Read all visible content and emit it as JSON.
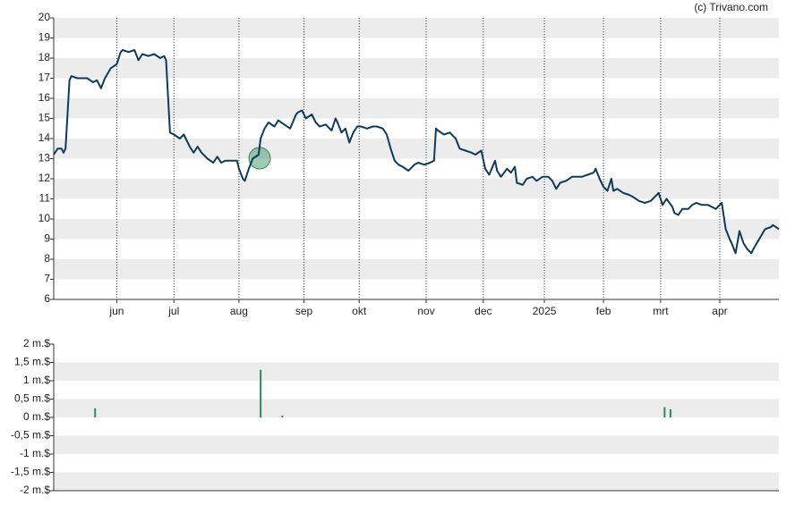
{
  "credit": "(c) Trivano.com",
  "chart_data": [
    {
      "type": "line",
      "x": [
        2,
        4,
        6,
        7,
        8,
        10,
        11,
        14,
        16,
        19,
        22,
        24,
        26,
        28,
        31,
        34,
        36,
        37,
        40,
        43,
        45,
        47,
        50,
        53,
        56,
        58,
        59,
        61,
        63,
        66,
        68,
        71,
        73,
        75,
        77,
        80,
        83,
        85,
        87,
        89,
        92,
        95,
        96,
        98,
        99,
        101,
        103,
        106,
        107,
        109,
        111,
        114,
        116,
        119,
        122,
        125,
        126,
        128,
        130,
        133,
        135,
        137,
        140,
        143,
        145,
        146,
        148,
        150,
        152,
        154,
        156,
        158,
        161,
        164,
        166,
        169,
        171,
        173,
        175,
        177,
        179,
        182,
        185,
        187,
        190,
        193,
        195,
        196,
        197,
        200,
        203,
        206,
        208,
        211,
        214,
        216,
        219,
        221,
        223,
        226,
        227,
        229,
        232,
        234,
        236,
        237,
        240,
        242,
        245,
        247,
        250,
        253,
        255,
        257,
        259,
        262,
        265,
        267,
        270,
        273,
        276,
        277,
        279,
        281,
        283,
        285,
        286,
        288,
        291,
        294,
        296,
        299,
        302,
        305,
        307,
        309,
        311,
        313,
        316,
        317,
        319,
        321,
        324,
        326,
        328,
        331,
        334,
        336,
        338,
        341,
        343,
        345,
        346,
        348,
        350,
        352,
        354,
        356,
        357,
        360,
        363,
        366,
        367,
        370
      ],
      "series": [
        {
          "color": "#0d3b5e",
          "values": [
            13.2,
            13.5,
            13.5,
            13.3,
            13.5,
            16.9,
            17.1,
            17.0,
            17.0,
            17.0,
            16.8,
            16.9,
            16.5,
            17.0,
            17.5,
            17.7,
            18.3,
            18.4,
            18.3,
            18.4,
            17.9,
            18.2,
            18.1,
            18.2,
            18.0,
            18.1,
            17.9,
            14.3,
            14.2,
            14.0,
            14.2,
            13.6,
            13.3,
            13.6,
            13.3,
            13.0,
            12.8,
            13.1,
            12.8,
            12.9,
            12.9,
            12.9,
            12.5,
            12.0,
            11.9,
            12.5,
            13.0,
            13.2,
            14.0,
            14.5,
            14.8,
            14.6,
            14.9,
            14.7,
            14.5,
            15.2,
            15.3,
            15.4,
            15.0,
            15.2,
            14.8,
            14.6,
            14.7,
            14.4,
            15.0,
            14.8,
            14.3,
            14.5,
            13.8,
            14.3,
            14.6,
            14.6,
            14.5,
            14.6,
            14.6,
            14.5,
            14.2,
            13.5,
            12.9,
            12.7,
            12.6,
            12.4,
            12.7,
            12.8,
            12.7,
            12.8,
            12.9,
            14.5,
            14.4,
            14.2,
            14.3,
            14.0,
            13.5,
            13.4,
            13.3,
            13.2,
            13.4,
            12.5,
            12.2,
            12.9,
            12.4,
            12.1,
            12.5,
            12.3,
            12.6,
            11.8,
            11.7,
            12.0,
            12.1,
            11.9,
            12.1,
            12.1,
            11.9,
            11.5,
            11.8,
            11.9,
            12.1,
            12.1,
            12.1,
            12.2,
            12.3,
            12.5,
            12.0,
            11.6,
            11.4,
            12.0,
            11.4,
            11.5,
            11.3,
            11.2,
            11.1,
            10.9,
            10.8,
            10.9,
            11.1,
            11.3,
            10.7,
            11.0,
            10.6,
            10.3,
            10.2,
            10.5,
            10.5,
            10.7,
            10.8,
            10.7,
            10.7,
            10.6,
            10.5,
            10.8,
            9.5,
            9.0,
            8.8,
            8.3,
            9.4,
            8.8,
            8.5,
            8.3,
            8.5,
            9.0,
            9.5,
            9.6,
            9.7,
            9.5
          ]
        }
      ],
      "xlim": [
        2,
        370
      ],
      "xticks": [
        {
          "value": 34,
          "label": "jun"
        },
        {
          "value": 63,
          "label": "jul"
        },
        {
          "value": 96,
          "label": "aug"
        },
        {
          "value": 129,
          "label": "sep"
        },
        {
          "value": 157,
          "label": "okt"
        },
        {
          "value": 191,
          "label": "nov"
        },
        {
          "value": 220,
          "label": "dec"
        },
        {
          "value": 251,
          "label": "2025"
        },
        {
          "value": 281,
          "label": "feb"
        },
        {
          "value": 310,
          "label": "mrt"
        },
        {
          "value": 340,
          "label": "apr"
        }
      ],
      "ylim": [
        6,
        20
      ],
      "yticks": [
        6,
        7,
        8,
        9,
        10,
        11,
        12,
        13,
        14,
        15,
        16,
        17,
        18,
        19,
        20
      ],
      "grid": true
    },
    {
      "type": "bar",
      "x": [
        23,
        107,
        118,
        312,
        315
      ],
      "values": [
        0.25,
        1.3,
        0.05,
        0.28,
        0.22
      ],
      "color": "#2e8b57",
      "xlim": [
        2,
        370
      ],
      "ylim": [
        -2,
        2
      ],
      "yticks": [
        {
          "value": -2,
          "label": "-2 m.$"
        },
        {
          "value": -1.5,
          "label": "-1,5 m.$"
        },
        {
          "value": -1,
          "label": "-1 m.$"
        },
        {
          "value": -0.5,
          "label": "-0,5 m.$"
        },
        {
          "value": 0,
          "label": "0 m.$"
        },
        {
          "value": 0.5,
          "label": "0,5 m.$"
        },
        {
          "value": 1,
          "label": "1 m.$"
        },
        {
          "value": 1.5,
          "label": "1,5 m.$"
        },
        {
          "value": 2,
          "label": "2 m.$"
        }
      ],
      "grid": true
    }
  ]
}
